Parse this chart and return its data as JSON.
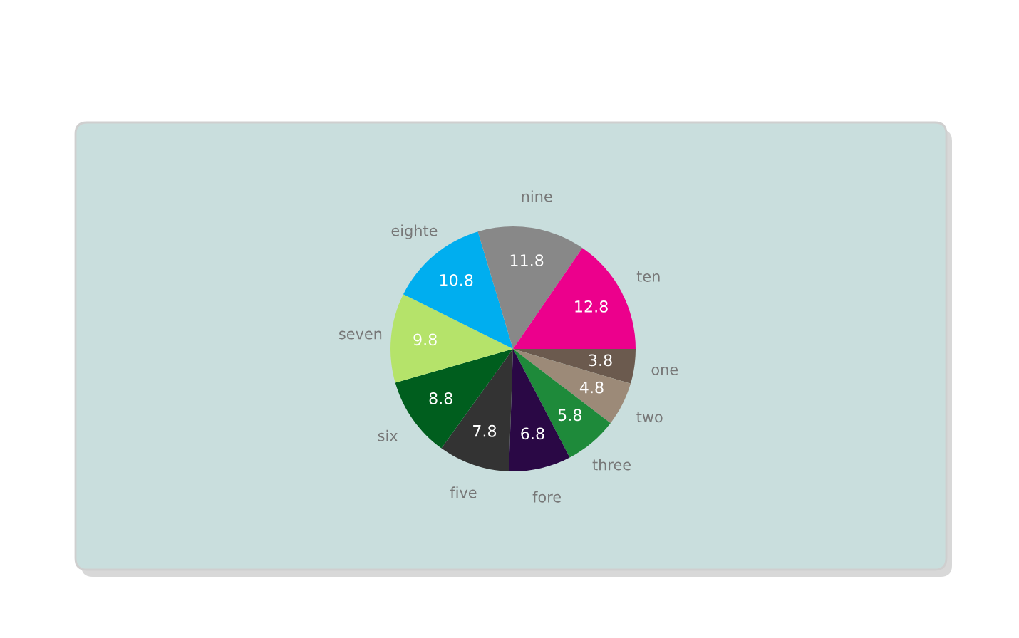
{
  "chart_data": {
    "type": "pie",
    "categories": [
      "one",
      "two",
      "three",
      "fore",
      "five",
      "six",
      "seven",
      "eighte",
      "nine",
      "ten"
    ],
    "values": [
      3.8,
      4.8,
      5.8,
      6.8,
      7.8,
      8.8,
      9.8,
      10.8,
      11.8,
      12.8
    ],
    "colors": [
      "#6b5a4e",
      "#9c8a78",
      "#1e8a3a",
      "#2a0845",
      "#333333",
      "#005e1e",
      "#b5e36a",
      "#00aeef",
      "#888888",
      "#ec008c"
    ],
    "data_labels": true,
    "legend": false
  }
}
